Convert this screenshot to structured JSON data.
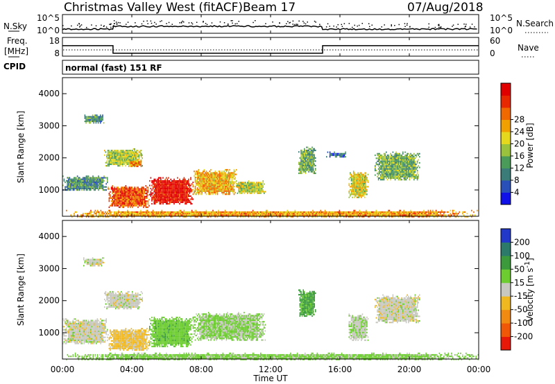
{
  "header": {
    "station": "Christmas Valley West (fitACF)",
    "beam": "Beam 17",
    "date": "07/Aug/2018"
  },
  "strips": {
    "nsky": {
      "left_label": "N.Sky",
      "left_ticks": [
        "10^5",
        "10^0"
      ],
      "right_label": "N.Search",
      "right_ticks": [
        "10^5",
        "10^0"
      ]
    },
    "freq": {
      "left_label_1": "Freq.",
      "left_label_2": "[MHz]",
      "left_ticks": [
        "18",
        "8"
      ],
      "right_label": "Nave",
      "right_ticks": [
        "60",
        "0"
      ],
      "frequency_mhz": [
        {
          "from": "00:00",
          "to": "02:55",
          "value": 13.6
        },
        {
          "from": "02:55",
          "to": "15:00",
          "value": 9.6
        },
        {
          "from": "15:00",
          "to": "24:00",
          "value": 13.6
        }
      ]
    },
    "cpid": {
      "label": "CPID",
      "text": "normal (fast) 151 RF"
    }
  },
  "axes": {
    "x_ticks": [
      "00:00",
      "04:00",
      "08:00",
      "12:00",
      "16:00",
      "20:00",
      "00:00"
    ],
    "x_label": "Time UT",
    "y_label": "Slant Range [km]",
    "y_ticks": [
      "1000",
      "2000",
      "3000",
      "4000"
    ]
  },
  "power_scale": {
    "title": "Power [dB]",
    "ticks": [
      "4",
      "8",
      "12",
      "16",
      "20",
      "24",
      "28"
    ],
    "colors": [
      "#1010e8",
      "#2850b8",
      "#3c7c78",
      "#4a9a5a",
      "#9ac23c",
      "#e6d81c",
      "#f0a000",
      "#f06800",
      "#e82800",
      "#e00000"
    ]
  },
  "velocity_scale": {
    "title": "Velocity [m s",
    "title_superscript": "-1",
    "title_end": "]",
    "ticks": [
      "200",
      "100",
      "50",
      "15",
      "-15",
      "-50",
      "-100",
      "-200"
    ],
    "colors": [
      "#2238c8",
      "#2c7a6a",
      "#3c9a3c",
      "#6ccc30",
      "#c8c8c0",
      "#f0b820",
      "#f08a10",
      "#f05808",
      "#e81808"
    ]
  },
  "chart_data": {
    "type": "heatmap",
    "x_range_hours": [
      0,
      24
    ],
    "y_range_km": [
      180,
      4500
    ],
    "panels": [
      {
        "name": "power",
        "regions": [
          {
            "t": [
              1.2,
              2.4
            ],
            "r": [
              3100,
              3350
            ],
            "v": 9
          },
          {
            "t": [
              0.0,
              2.6
            ],
            "r": [
              1000,
              1450
            ],
            "v": 9
          },
          {
            "t": [
              2.6,
              5.0
            ],
            "r": [
              450,
              1150
            ],
            "v": 24
          },
          {
            "t": [
              5.0,
              7.5
            ],
            "r": [
              550,
              1400
            ],
            "v": 28
          },
          {
            "t": [
              7.5,
              10.0
            ],
            "r": [
              850,
              1650
            ],
            "v": 19
          },
          {
            "t": [
              10.0,
              11.7
            ],
            "r": [
              900,
              1300
            ],
            "v": 15
          },
          {
            "t": [
              2.4,
              4.6
            ],
            "r": [
              1750,
              2300
            ],
            "v": 14
          },
          {
            "t": [
              3.8,
              4.6
            ],
            "r": [
              1750,
              1950
            ],
            "v": 22
          },
          {
            "t": [
              13.6,
              14.6
            ],
            "r": [
              1500,
              2350
            ],
            "v": 11
          },
          {
            "t": [
              15.2,
              16.4
            ],
            "r": [
              2050,
              2200
            ],
            "v": 7
          },
          {
            "t": [
              16.5,
              17.6
            ],
            "r": [
              750,
              1600
            ],
            "v": 16
          },
          {
            "t": [
              18.0,
              20.6
            ],
            "r": [
              1300,
              2200
            ],
            "v": 12
          },
          {
            "t": [
              0.2,
              24.0
            ],
            "r": [
              180,
              380
            ],
            "v": 20
          }
        ]
      },
      {
        "name": "velocity",
        "regions": [
          {
            "t": [
              1.2,
              2.4
            ],
            "r": [
              3100,
              3350
            ],
            "v": 0
          },
          {
            "t": [
              0.0,
              2.6
            ],
            "r": [
              650,
              1450
            ],
            "v": 0
          },
          {
            "t": [
              2.6,
              5.0
            ],
            "r": [
              450,
              1150
            ],
            "v": -25
          },
          {
            "t": [
              5.0,
              7.5
            ],
            "r": [
              550,
              1500
            ],
            "v": 35
          },
          {
            "t": [
              7.5,
              11.7
            ],
            "r": [
              750,
              1650
            ],
            "v": 20
          },
          {
            "t": [
              2.4,
              4.6
            ],
            "r": [
              1750,
              2300
            ],
            "v": 0
          },
          {
            "t": [
              13.6,
              14.6
            ],
            "r": [
              1500,
              2350
            ],
            "v": 60
          },
          {
            "t": [
              16.5,
              17.6
            ],
            "r": [
              750,
              1600
            ],
            "v": 8
          },
          {
            "t": [
              18.0,
              20.6
            ],
            "r": [
              1300,
              2200
            ],
            "v": 0
          },
          {
            "t": [
              0.2,
              24.0
            ],
            "r": [
              180,
              380
            ],
            "v": 25
          }
        ]
      }
    ]
  }
}
